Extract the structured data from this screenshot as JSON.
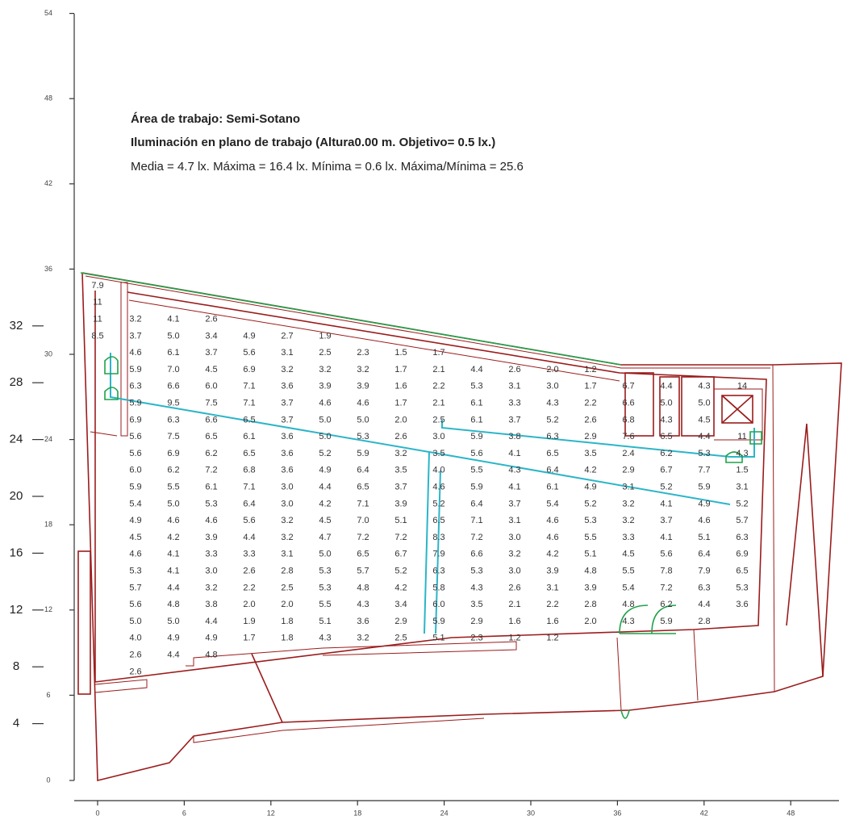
{
  "header": {
    "area": "Área de trabajo: Semi-Sotano",
    "subtitle": "Iluminación en plano de trabajo (Altura0.00 m.  Objetivo= 0.5 lx.)",
    "stats": "Media = 4.7 lx. Máxima = 16.4 lx. Mínima = 0.6 lx.  Máxima/Mínima = 25.6"
  },
  "axes": {
    "x_ticks": [
      "0",
      "6",
      "12",
      "18",
      "24",
      "30",
      "36",
      "42",
      "48"
    ],
    "y_ticks": [
      "0",
      "6",
      "12",
      "18",
      "24",
      "30",
      "36",
      "42",
      "48",
      "54"
    ],
    "y_ticks_large": [
      "4",
      "8",
      "12",
      "16",
      "20",
      "24",
      "28",
      "32"
    ]
  },
  "grid": {
    "rows": [
      [
        "7.9"
      ],
      [
        "11"
      ],
      [
        "11",
        "3.2",
        "4.1",
        "2.6"
      ],
      [
        "8.5",
        "3.7",
        "5.0",
        "3.4",
        "4.9",
        "2.7",
        "1.9"
      ],
      [
        null,
        "4.6",
        "6.1",
        "3.7",
        "5.6",
        "3.1",
        "2.5",
        "2.3",
        "1.5",
        "1.7"
      ],
      [
        null,
        "5.9",
        "7.0",
        "4.5",
        "6.9",
        "3.2",
        "3.2",
        "3.2",
        "1.7",
        "2.1",
        "4.4",
        "2.6",
        "2.0",
        "1.2"
      ],
      [
        null,
        "6.3",
        "6.6",
        "6.0",
        "7.1",
        "3.6",
        "3.9",
        "3.9",
        "1.6",
        "2.2",
        "5.3",
        "3.1",
        "3.0",
        "1.7",
        "6.7",
        "4.4",
        "4.3",
        "14"
      ],
      [
        null,
        "5.9",
        "9.5",
        "7.5",
        "7.1",
        "3.7",
        "4.6",
        "4.6",
        "1.7",
        "2.1",
        "6.1",
        "3.3",
        "4.3",
        "2.2",
        "6.6",
        "5.0",
        "5.0"
      ],
      [
        null,
        "6.9",
        "6.3",
        "6.6",
        "6.5",
        "3.7",
        "5.0",
        "5.0",
        "2.0",
        "2.5",
        "6.1",
        "3.7",
        "5.2",
        "2.6",
        "6.8",
        "4.3",
        "4.5"
      ],
      [
        null,
        "5.6",
        "7.5",
        "6.5",
        "6.1",
        "3.6",
        "5.0",
        "5.3",
        "2.6",
        "3.0",
        "5.9",
        "3.8",
        "6.3",
        "2.9",
        "7.6",
        "6.5",
        "4.4",
        "11"
      ],
      [
        null,
        "5.6",
        "6.9",
        "6.2",
        "6.5",
        "3.6",
        "5.2",
        "5.9",
        "3.2",
        "3.5",
        "5.6",
        "4.1",
        "6.5",
        "3.5",
        "2.4",
        "6.2",
        "5.3",
        "4.3"
      ],
      [
        null,
        "6.0",
        "6.2",
        "7.2",
        "6.8",
        "3.6",
        "4.9",
        "6.4",
        "3.5",
        "4.0",
        "5.5",
        "4.3",
        "6.4",
        "4.2",
        "2.9",
        "6.7",
        "7.7",
        "1.5"
      ],
      [
        null,
        "5.9",
        "5.5",
        "6.1",
        "7.1",
        "3.0",
        "4.4",
        "6.5",
        "3.7",
        "4.6",
        "5.9",
        "4.1",
        "6.1",
        "4.9",
        "3.1",
        "5.2",
        "5.9",
        "3.1"
      ],
      [
        null,
        "5.4",
        "5.0",
        "5.3",
        "6.4",
        "3.0",
        "4.2",
        "7.1",
        "3.9",
        "5.2",
        "6.4",
        "3.7",
        "5.4",
        "5.2",
        "3.2",
        "4.1",
        "4.9",
        "5.2"
      ],
      [
        null,
        "4.9",
        "4.6",
        "4.6",
        "5.6",
        "3.2",
        "4.5",
        "7.0",
        "5.1",
        "6.5",
        "7.1",
        "3.1",
        "4.6",
        "5.3",
        "3.2",
        "3.7",
        "4.6",
        "5.7"
      ],
      [
        null,
        "4.5",
        "4.2",
        "3.9",
        "4.4",
        "3.2",
        "4.7",
        "7.2",
        "7.2",
        "8.3",
        "7.2",
        "3.0",
        "4.6",
        "5.5",
        "3.3",
        "4.1",
        "5.1",
        "6.3"
      ],
      [
        null,
        "4.6",
        "4.1",
        "3.3",
        "3.3",
        "3.1",
        "5.0",
        "6.5",
        "6.7",
        "7.9",
        "6.6",
        "3.2",
        "4.2",
        "5.1",
        "4.5",
        "5.6",
        "6.4",
        "6.9"
      ],
      [
        null,
        "5.3",
        "4.1",
        "3.0",
        "2.6",
        "2.8",
        "5.3",
        "5.7",
        "5.2",
        "6.3",
        "5.3",
        "3.0",
        "3.9",
        "4.8",
        "5.5",
        "7.8",
        "7.9",
        "6.5"
      ],
      [
        null,
        "5.7",
        "4.4",
        "3.2",
        "2.2",
        "2.5",
        "5.3",
        "4.8",
        "4.2",
        "5.8",
        "4.3",
        "2.6",
        "3.1",
        "3.9",
        "5.4",
        "7.2",
        "6.3",
        "5.3"
      ],
      [
        null,
        "5.6",
        "4.8",
        "3.8",
        "2.0",
        "2.0",
        "5.5",
        "4.3",
        "3.4",
        "6.0",
        "3.5",
        "2.1",
        "2.2",
        "2.8",
        "4.8",
        "6.2",
        "4.4",
        "3.6"
      ],
      [
        null,
        "5.0",
        "5.0",
        "4.4",
        "1.9",
        "1.8",
        "5.1",
        "3.6",
        "2.9",
        "5.9",
        "2.9",
        "1.6",
        "1.6",
        "2.0",
        "4.3",
        "5.9",
        "2.8"
      ],
      [
        null,
        "4.0",
        "4.9",
        "4.9",
        "1.7",
        "1.8",
        "4.3",
        "3.2",
        "2.5",
        "5.1",
        "2.3",
        "1.2",
        "1.2"
      ],
      [
        null,
        "2.6",
        "4.4",
        "4.8"
      ],
      [
        null,
        "2.6"
      ]
    ]
  }
}
